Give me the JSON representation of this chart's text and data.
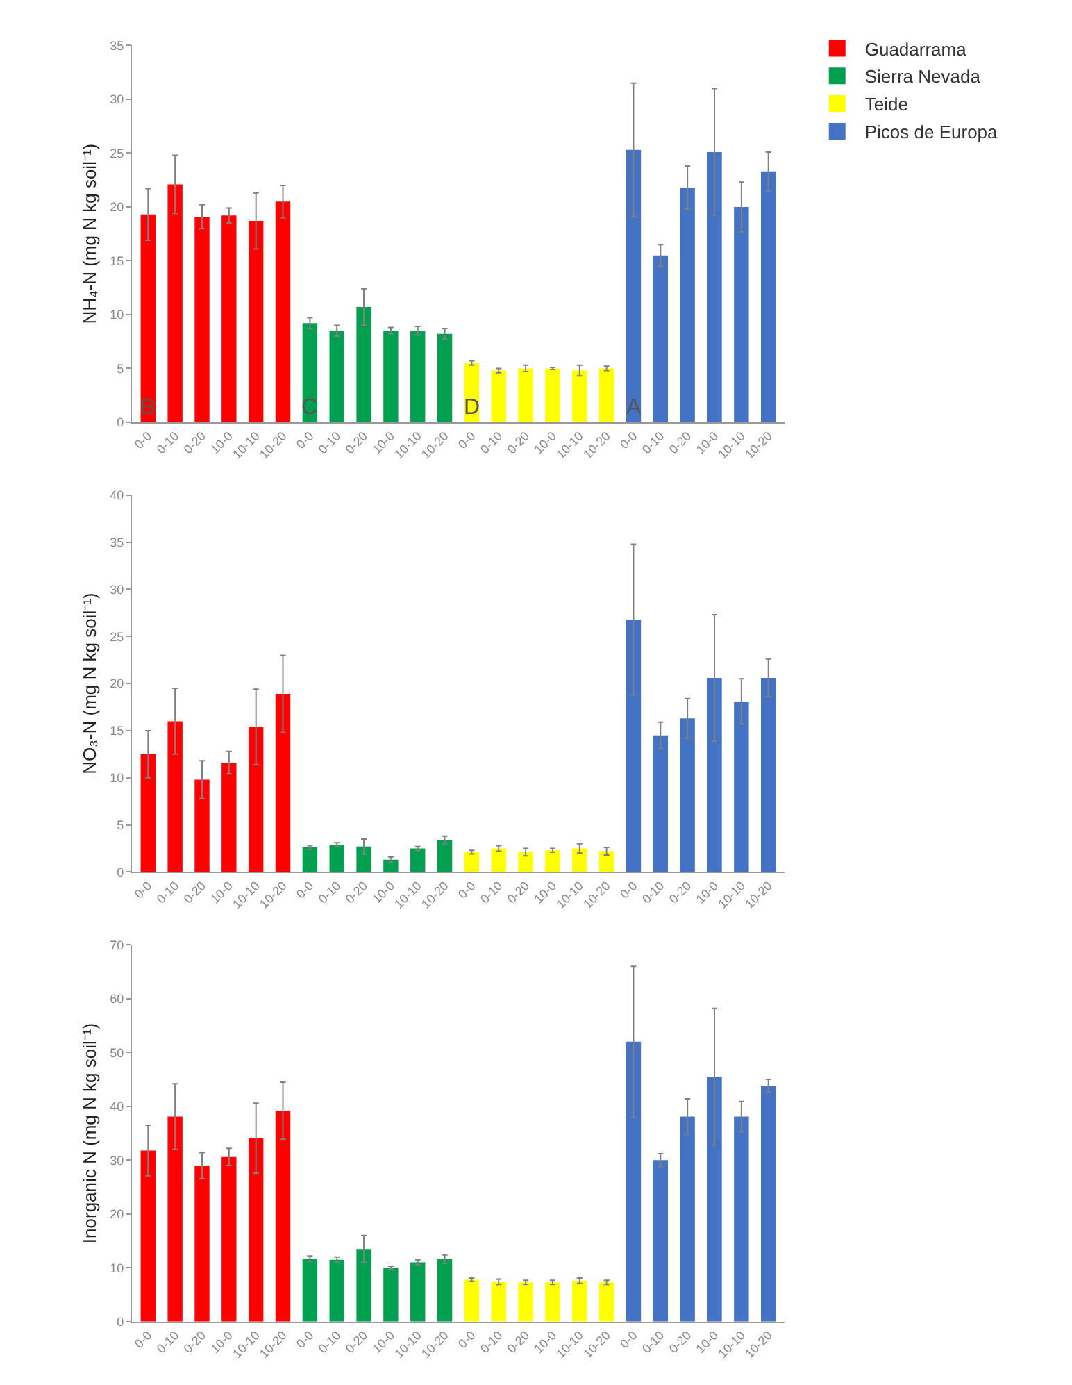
{
  "chart_data": [
    {
      "type": "bar",
      "ylabel": "NH₄-N (mg N kg soil⁻¹)",
      "categories": [
        "0-0",
        "0-10",
        "0-20",
        "10-0",
        "10-10",
        "10-20",
        "0-0",
        "0-10",
        "0-20",
        "10-0",
        "10-10",
        "10-20",
        "0-0",
        "0-10",
        "0-20",
        "10-0",
        "10-10",
        "10-20",
        "0-0",
        "0-10",
        "0-20",
        "10-0",
        "10-10",
        "10-20"
      ],
      "ylim": [
        0,
        35
      ],
      "yticks": [
        0,
        5,
        10,
        15,
        20,
        25,
        30,
        35
      ],
      "legend": "right",
      "annotations": [
        "B",
        "C",
        "D",
        "A"
      ],
      "series": [
        {
          "name": "Guadarrama",
          "color": "#ff0000",
          "values": [
            19.3,
            22.1,
            19.1,
            19.2,
            18.7,
            20.5,
            null,
            null,
            null,
            null,
            null,
            null,
            null,
            null,
            null,
            null,
            null,
            null,
            null,
            null,
            null,
            null,
            null,
            null
          ],
          "errors": [
            2.4,
            2.7,
            1.1,
            0.7,
            2.6,
            1.5,
            null,
            null,
            null,
            null,
            null,
            null,
            null,
            null,
            null,
            null,
            null,
            null,
            null,
            null,
            null,
            null,
            null,
            null
          ]
        },
        {
          "name": "Sierra Nevada",
          "color": "#00a050",
          "values": [
            null,
            null,
            null,
            null,
            null,
            null,
            9.2,
            8.5,
            10.7,
            8.5,
            8.5,
            8.2,
            null,
            null,
            null,
            null,
            null,
            null,
            null,
            null,
            null,
            null,
            null,
            null
          ],
          "errors": [
            null,
            null,
            null,
            null,
            null,
            null,
            0.5,
            0.5,
            1.7,
            0.3,
            0.4,
            0.5,
            null,
            null,
            null,
            null,
            null,
            null,
            null,
            null,
            null,
            null,
            null,
            null
          ]
        },
        {
          "name": "Teide",
          "color": "#ffff00",
          "values": [
            null,
            null,
            null,
            null,
            null,
            null,
            null,
            null,
            null,
            null,
            null,
            null,
            5.5,
            4.8,
            5.0,
            5.0,
            4.8,
            5.0,
            null,
            null,
            null,
            null,
            null,
            null
          ],
          "errors": [
            null,
            null,
            null,
            null,
            null,
            null,
            null,
            null,
            null,
            null,
            null,
            null,
            0.2,
            0.2,
            0.3,
            0.1,
            0.5,
            0.2,
            null,
            null,
            null,
            null,
            null,
            null
          ]
        },
        {
          "name": "Picos de Europa",
          "color": "#4472c4",
          "values": [
            null,
            null,
            null,
            null,
            null,
            null,
            null,
            null,
            null,
            null,
            null,
            null,
            null,
            null,
            null,
            null,
            null,
            null,
            25.3,
            15.5,
            21.8,
            25.1,
            20.0,
            23.3
          ],
          "errors": [
            null,
            null,
            null,
            null,
            null,
            null,
            null,
            null,
            null,
            null,
            null,
            null,
            null,
            null,
            null,
            null,
            null,
            null,
            6.2,
            1.0,
            2.0,
            5.9,
            2.3,
            1.8
          ]
        }
      ]
    },
    {
      "type": "bar",
      "ylabel": "NO₃-N (mg N kg soil⁻¹)",
      "categories": [
        "0-0",
        "0-10",
        "0-20",
        "10-0",
        "10-10",
        "10-20",
        "0-0",
        "0-10",
        "0-20",
        "10-0",
        "10-10",
        "10-20",
        "0-0",
        "0-10",
        "0-20",
        "10-0",
        "10-10",
        "10-20",
        "0-0",
        "0-10",
        "0-20",
        "10-0",
        "10-10",
        "10-20"
      ],
      "ylim": [
        0,
        40
      ],
      "yticks": [
        0,
        5,
        10,
        15,
        20,
        25,
        30,
        35,
        40
      ],
      "series": [
        {
          "color": "#ff0000",
          "values": [
            12.5,
            16.0,
            9.8,
            11.6,
            15.4,
            18.9,
            null,
            null,
            null,
            null,
            null,
            null,
            null,
            null,
            null,
            null,
            null,
            null,
            null,
            null,
            null,
            null,
            null,
            null
          ],
          "errors": [
            2.5,
            3.5,
            2.0,
            1.2,
            4.0,
            4.1,
            null,
            null,
            null,
            null,
            null,
            null,
            null,
            null,
            null,
            null,
            null,
            null,
            null,
            null,
            null,
            null,
            null,
            null
          ]
        },
        {
          "color": "#00a050",
          "values": [
            null,
            null,
            null,
            null,
            null,
            null,
            2.6,
            2.9,
            2.7,
            1.3,
            2.5,
            3.4,
            null,
            null,
            null,
            null,
            null,
            null,
            null,
            null,
            null,
            null,
            null,
            null
          ],
          "errors": [
            null,
            null,
            null,
            null,
            null,
            null,
            0.2,
            0.2,
            0.8,
            0.3,
            0.2,
            0.4,
            null,
            null,
            null,
            null,
            null,
            null,
            null,
            null,
            null,
            null,
            null,
            null
          ]
        },
        {
          "color": "#ffff00",
          "values": [
            null,
            null,
            null,
            null,
            null,
            null,
            null,
            null,
            null,
            null,
            null,
            null,
            2.1,
            2.5,
            2.1,
            2.3,
            2.5,
            2.2,
            null,
            null,
            null,
            null,
            null,
            null
          ],
          "errors": [
            null,
            null,
            null,
            null,
            null,
            null,
            null,
            null,
            null,
            null,
            null,
            null,
            0.2,
            0.3,
            0.4,
            0.2,
            0.5,
            0.4,
            null,
            null,
            null,
            null,
            null,
            null
          ]
        },
        {
          "color": "#4472c4",
          "values": [
            null,
            null,
            null,
            null,
            null,
            null,
            null,
            null,
            null,
            null,
            null,
            null,
            null,
            null,
            null,
            null,
            null,
            null,
            26.8,
            14.5,
            16.3,
            20.6,
            18.1,
            20.6
          ],
          "errors": [
            null,
            null,
            null,
            null,
            null,
            null,
            null,
            null,
            null,
            null,
            null,
            null,
            null,
            null,
            null,
            null,
            null,
            null,
            8.0,
            1.4,
            2.1,
            6.7,
            2.4,
            2.0
          ]
        }
      ]
    },
    {
      "type": "bar",
      "ylabel": "Inorganic N (mg N kg soil⁻¹)",
      "categories": [
        "0-0",
        "0-10",
        "0-20",
        "10-0",
        "10-10",
        "10-20",
        "0-0",
        "0-10",
        "0-20",
        "10-0",
        "10-10",
        "10-20",
        "0-0",
        "0-10",
        "0-20",
        "10-0",
        "10-10",
        "10-20",
        "0-0",
        "0-10",
        "0-20",
        "10-0",
        "10-10",
        "10-20"
      ],
      "ylim": [
        0,
        70
      ],
      "yticks": [
        0,
        10,
        20,
        30,
        40,
        50,
        60,
        70
      ],
      "series": [
        {
          "color": "#ff0000",
          "values": [
            31.8,
            38.1,
            29.0,
            30.6,
            34.1,
            39.2,
            null,
            null,
            null,
            null,
            null,
            null,
            null,
            null,
            null,
            null,
            null,
            null,
            null,
            null,
            null,
            null,
            null,
            null
          ],
          "errors": [
            4.7,
            6.1,
            2.4,
            1.6,
            6.5,
            5.3,
            null,
            null,
            null,
            null,
            null,
            null,
            null,
            null,
            null,
            null,
            null,
            null,
            null,
            null,
            null,
            null,
            null,
            null
          ]
        },
        {
          "color": "#00a050",
          "values": [
            null,
            null,
            null,
            null,
            null,
            null,
            11.7,
            11.5,
            13.5,
            10.0,
            11.0,
            11.6,
            null,
            null,
            null,
            null,
            null,
            null,
            null,
            null,
            null,
            null,
            null,
            null
          ],
          "errors": [
            null,
            null,
            null,
            null,
            null,
            null,
            0.5,
            0.5,
            2.5,
            0.3,
            0.5,
            0.8,
            null,
            null,
            null,
            null,
            null,
            null,
            null,
            null,
            null,
            null,
            null,
            null
          ]
        },
        {
          "color": "#ffff00",
          "values": [
            null,
            null,
            null,
            null,
            null,
            null,
            null,
            null,
            null,
            null,
            null,
            null,
            7.8,
            7.4,
            7.3,
            7.3,
            7.6,
            7.3,
            null,
            null,
            null,
            null,
            null,
            null
          ],
          "errors": [
            null,
            null,
            null,
            null,
            null,
            null,
            null,
            null,
            null,
            null,
            null,
            null,
            0.3,
            0.5,
            0.4,
            0.4,
            0.5,
            0.4,
            null,
            null,
            null,
            null,
            null,
            null
          ]
        },
        {
          "color": "#4472c4",
          "values": [
            null,
            null,
            null,
            null,
            null,
            null,
            null,
            null,
            null,
            null,
            null,
            null,
            null,
            null,
            null,
            null,
            null,
            null,
            52.0,
            30.0,
            38.1,
            45.5,
            38.1,
            43.8
          ],
          "errors": [
            null,
            null,
            null,
            null,
            null,
            null,
            null,
            null,
            null,
            null,
            null,
            null,
            null,
            null,
            null,
            null,
            null,
            null,
            14.0,
            1.2,
            3.3,
            12.7,
            2.8,
            1.2
          ]
        }
      ]
    }
  ]
}
